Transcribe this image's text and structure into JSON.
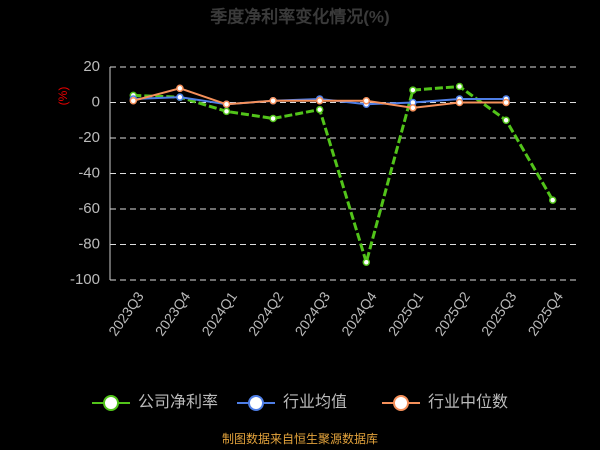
{
  "chart_data": {
    "type": "line",
    "title": "季度净利率变化情况(%)",
    "y_label": "(%)",
    "categories": [
      "2023Q3",
      "2023Q4",
      "2024Q1",
      "2024Q2",
      "2024Q3",
      "2024Q4",
      "2025Q1",
      "2025Q2",
      "2025Q3",
      "2025Q4"
    ],
    "series": [
      {
        "name": "公司净利率",
        "color": "#52c41a",
        "dashed": true,
        "values": [
          4,
          3,
          -5,
          -9,
          -4,
          -90,
          7,
          9,
          -10,
          -55
        ]
      },
      {
        "name": "行业均值",
        "color": "#4e7ee6",
        "values": [
          2,
          3,
          -1,
          1,
          2,
          -1,
          0,
          2,
          2,
          null
        ]
      },
      {
        "name": "行业中位数",
        "color": "#f5905a",
        "values": [
          1,
          8,
          -1,
          1,
          1,
          1,
          -3,
          0,
          0,
          null
        ]
      }
    ],
    "ylim": [
      -100,
      20
    ],
    "yticks": [
      -100,
      -80,
      -60,
      -40,
      -20,
      0,
      20
    ],
    "grid": true,
    "source": "制图数据来自恒生聚源数据库"
  }
}
